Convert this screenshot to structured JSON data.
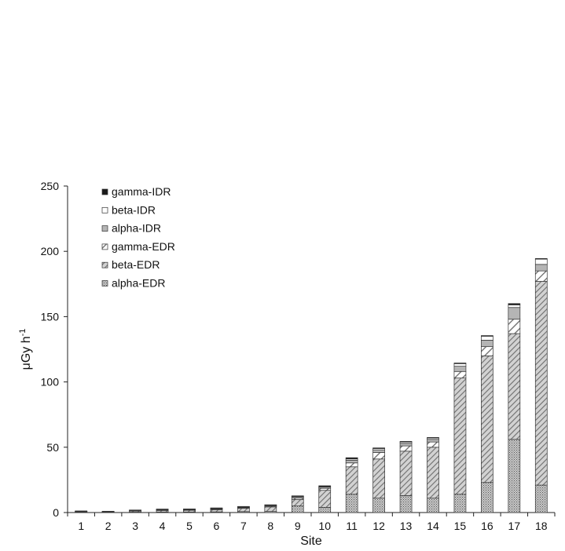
{
  "chart_data": {
    "type": "bar",
    "stacked": true,
    "title": "",
    "xlabel": "Site",
    "ylabel_main": "μGy h",
    "ylabel_sup": "-1",
    "ylim": [
      0,
      250
    ],
    "yticks": [
      "0",
      "50",
      "100",
      "150",
      "200",
      "250"
    ],
    "categories": [
      "1",
      "2",
      "3",
      "4",
      "5",
      "6",
      "7",
      "8",
      "9",
      "10",
      "11",
      "12",
      "13",
      "14",
      "15",
      "16",
      "17",
      "18"
    ],
    "legend_position": "top-left",
    "legend_order": [
      "gamma-IDR",
      "beta-IDR",
      "alpha-IDR",
      "gamma-EDR",
      "beta-EDR",
      "alpha-EDR"
    ],
    "series": [
      {
        "name": "alpha-EDR",
        "pattern": "crosshatch",
        "values": [
          0.2,
          0.1,
          0.3,
          0.4,
          0.4,
          0.5,
          0.7,
          0.8,
          5,
          4,
          14,
          11,
          13,
          11,
          14,
          23,
          56,
          21
        ]
      },
      {
        "name": "beta-EDR",
        "pattern": "diagonal-gray",
        "values": [
          0.4,
          0.3,
          0.8,
          1.2,
          1.3,
          1.7,
          2.5,
          3.5,
          5,
          13,
          21,
          30,
          34,
          39,
          89,
          97,
          81,
          156
        ]
      },
      {
        "name": "gamma-EDR",
        "pattern": "diagonal-white",
        "values": [
          0.1,
          0.1,
          0.2,
          0.3,
          0.3,
          0.4,
          0.5,
          0.6,
          1,
          1.5,
          3,
          5,
          4,
          4,
          5,
          7,
          11,
          8
        ]
      },
      {
        "name": "alpha-IDR",
        "pattern": "light-gray",
        "values": [
          0.1,
          0.1,
          0.2,
          0.3,
          0.3,
          0.4,
          0.4,
          0.5,
          1,
          1,
          2,
          2,
          2,
          2,
          4,
          5,
          9,
          5
        ]
      },
      {
        "name": "beta-IDR",
        "pattern": "white",
        "values": [
          0.05,
          0.05,
          0.1,
          0.1,
          0.1,
          0.2,
          0.2,
          0.2,
          0.3,
          0.3,
          1,
          1,
          1,
          1,
          2,
          3,
          2,
          4
        ]
      },
      {
        "name": "gamma-IDR",
        "pattern": "black",
        "values": [
          0.1,
          0.05,
          0.2,
          0.2,
          0.2,
          0.3,
          0.3,
          0.3,
          0.5,
          0.7,
          1,
          0.5,
          0.5,
          0.5,
          0.5,
          0.5,
          1,
          0.5
        ]
      }
    ],
    "colors": {
      "axis": "#222222",
      "bar_outline": "#333333",
      "hatch_gray": "#6e6e6e",
      "fill_gray": "#b5b5b5",
      "fill_dark": "#1a1a1a"
    }
  }
}
